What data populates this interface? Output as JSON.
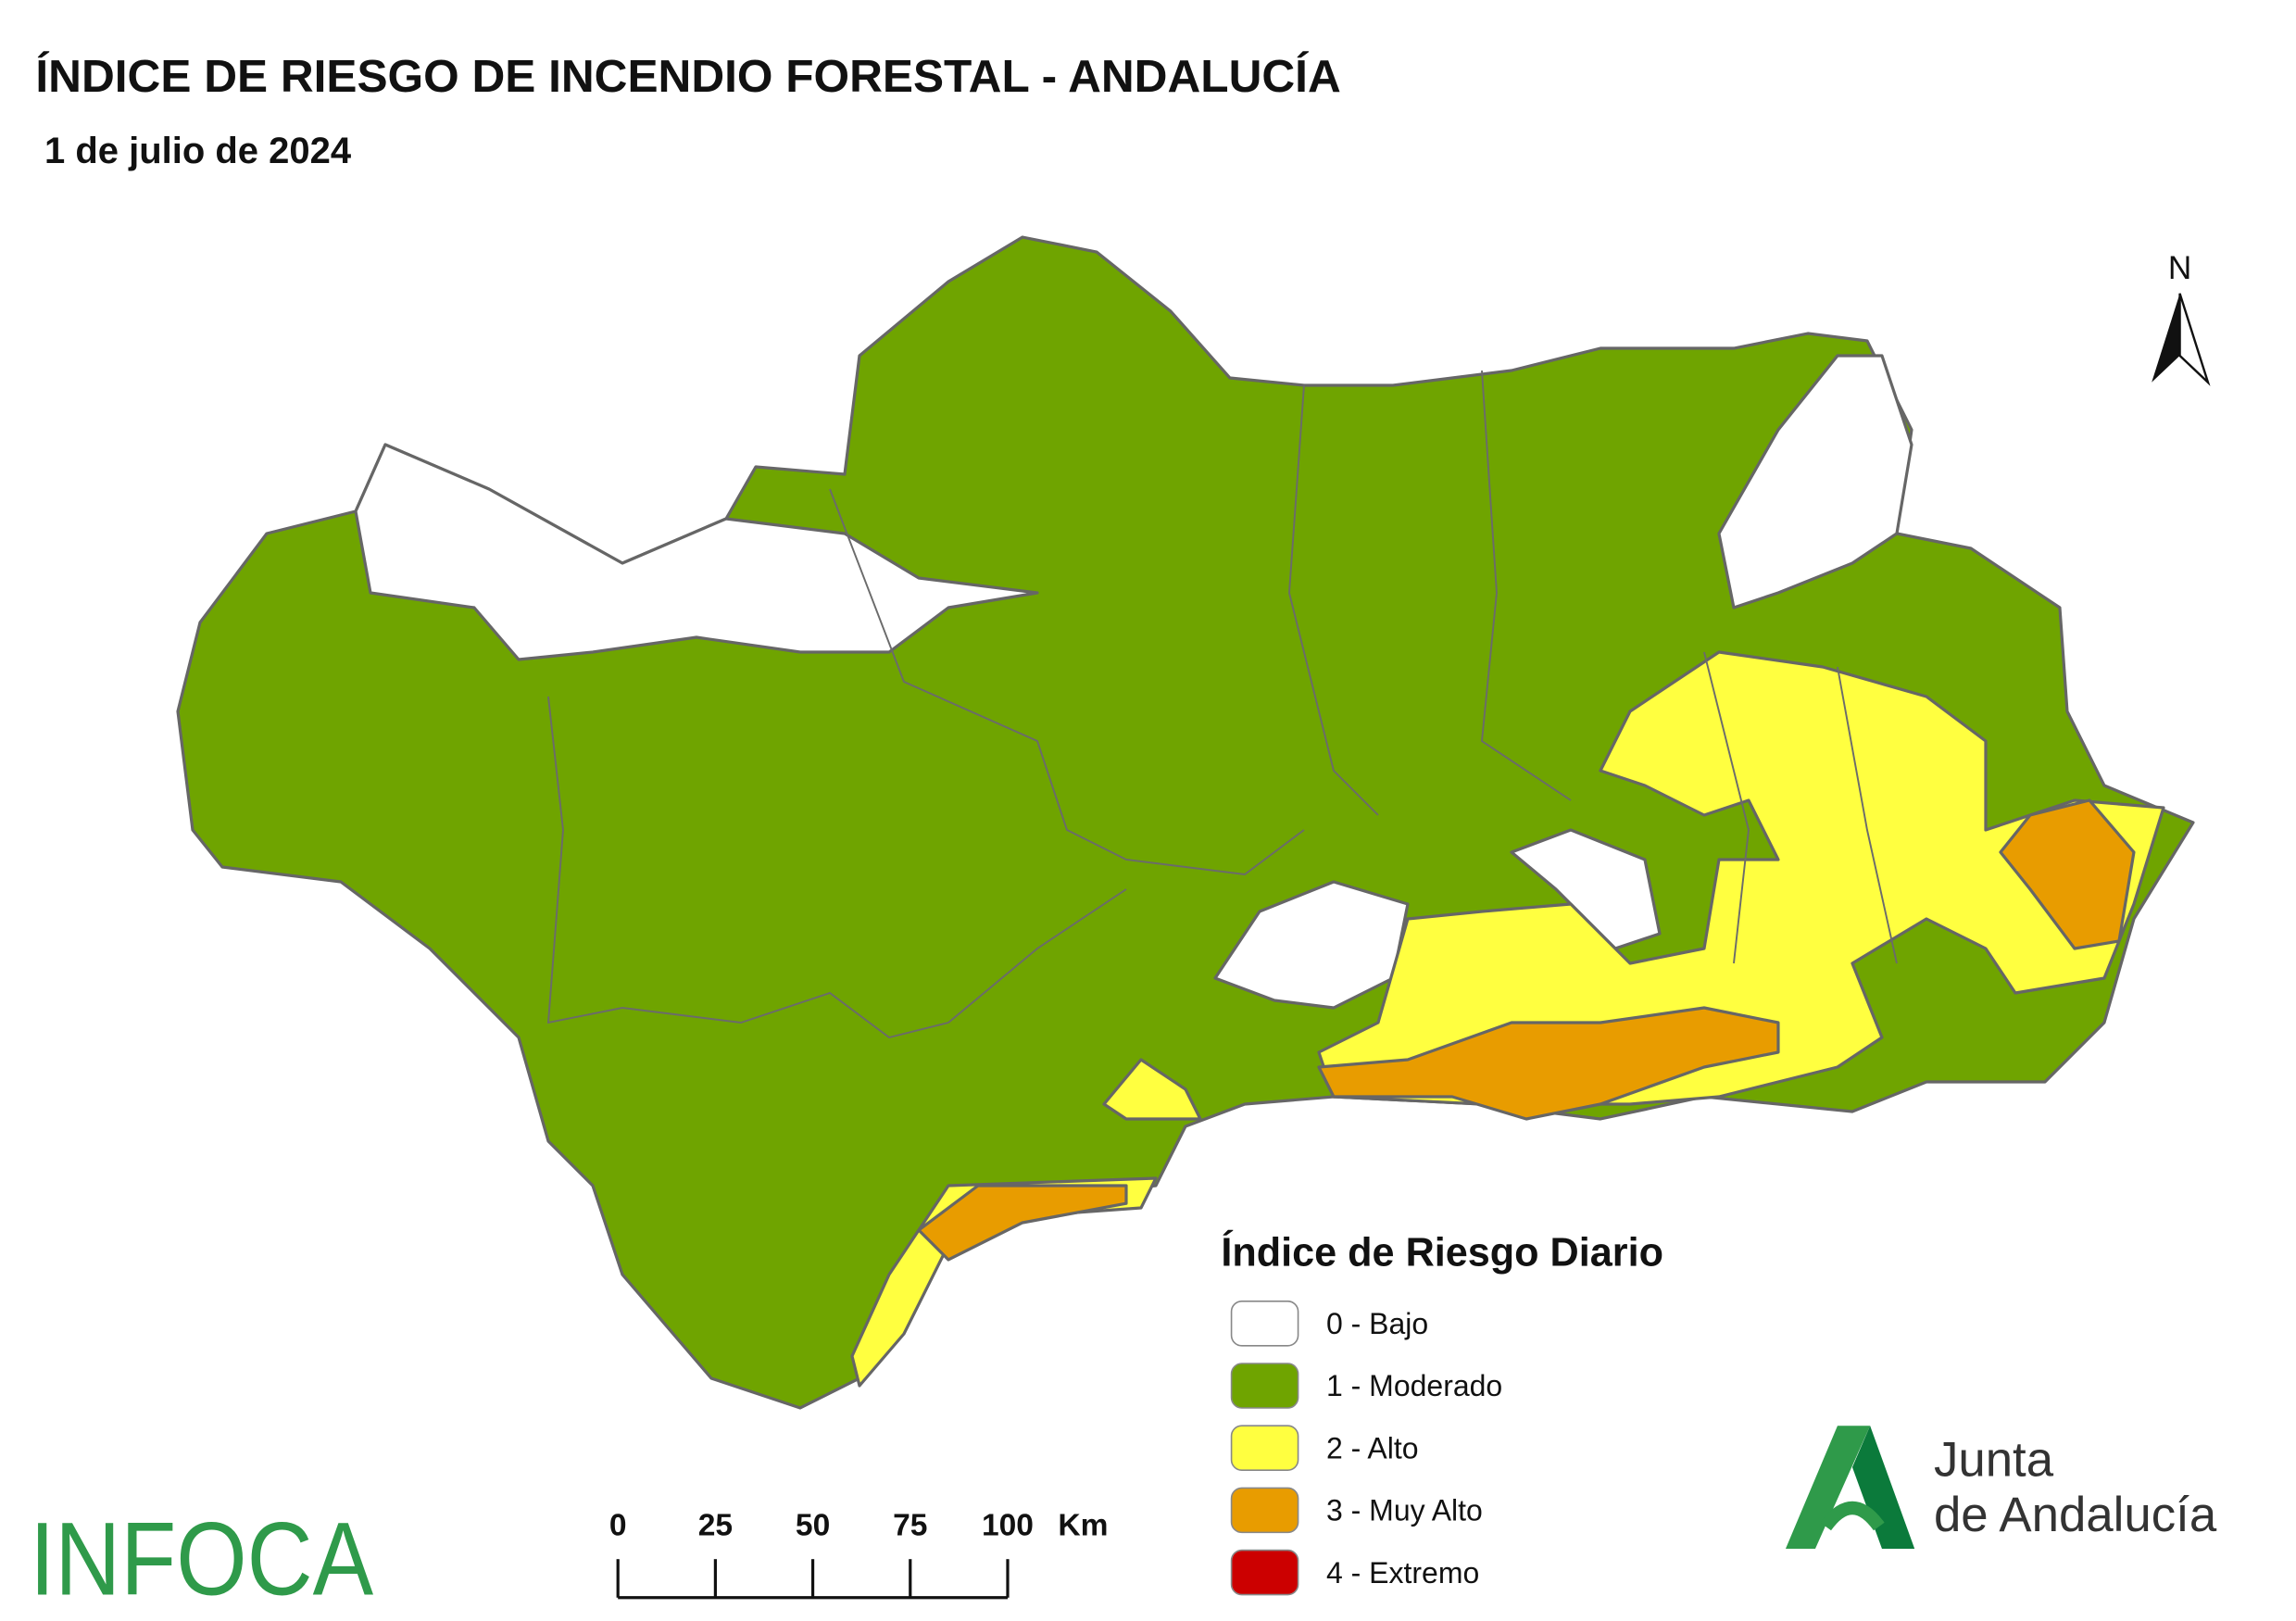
{
  "header": {
    "title": "ÍNDICE DE RIESGO DE INCENDIO FORESTAL - ANDALUCÍA",
    "date": "1 de julio de 2024"
  },
  "north": "N",
  "legend": {
    "title": "Índice de Riesgo Diario",
    "items": [
      {
        "label": "0 - Bajo",
        "color": "#ffffff"
      },
      {
        "label": "1 - Moderado",
        "color": "#6fa400"
      },
      {
        "label": "2 - Alto",
        "color": "#ffff40"
      },
      {
        "label": "3 - Muy Alto",
        "color": "#e89c00"
      },
      {
        "label": "4 - Extremo",
        "color": "#cc0000"
      }
    ]
  },
  "scale_bar": {
    "ticks": [
      0,
      25,
      50,
      75,
      100
    ],
    "unit": "Km"
  },
  "logos": {
    "infoca": "INFOCA",
    "junta_line1": "Junta",
    "junta_line2": "de Andalucía"
  }
}
